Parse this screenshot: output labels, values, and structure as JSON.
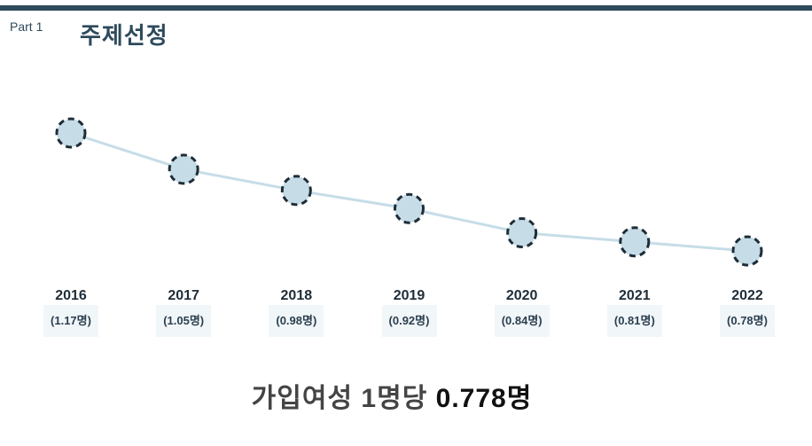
{
  "header": {
    "part": "Part 1",
    "title": "주제선정"
  },
  "chart_data": {
    "type": "line",
    "categories": [
      "2016",
      "2017",
      "2018",
      "2019",
      "2020",
      "2021",
      "2022"
    ],
    "values": [
      1.17,
      1.05,
      0.98,
      0.92,
      0.84,
      0.81,
      0.78
    ],
    "value_labels": [
      "(1.17명)",
      "(1.05명)",
      "(0.98명)",
      "(0.92명)",
      "(0.84명)",
      "(0.81명)",
      "(0.78명)"
    ],
    "grid": false,
    "legend": "none",
    "colors": {
      "line": "#c6dde8",
      "marker_fill": "#c6dde8",
      "marker_stroke": "#1f2d38"
    }
  },
  "summary": {
    "prefix": "가입여성 1명당",
    "value": "0.778명"
  },
  "colors": {
    "accent": "#2e4a5c"
  }
}
